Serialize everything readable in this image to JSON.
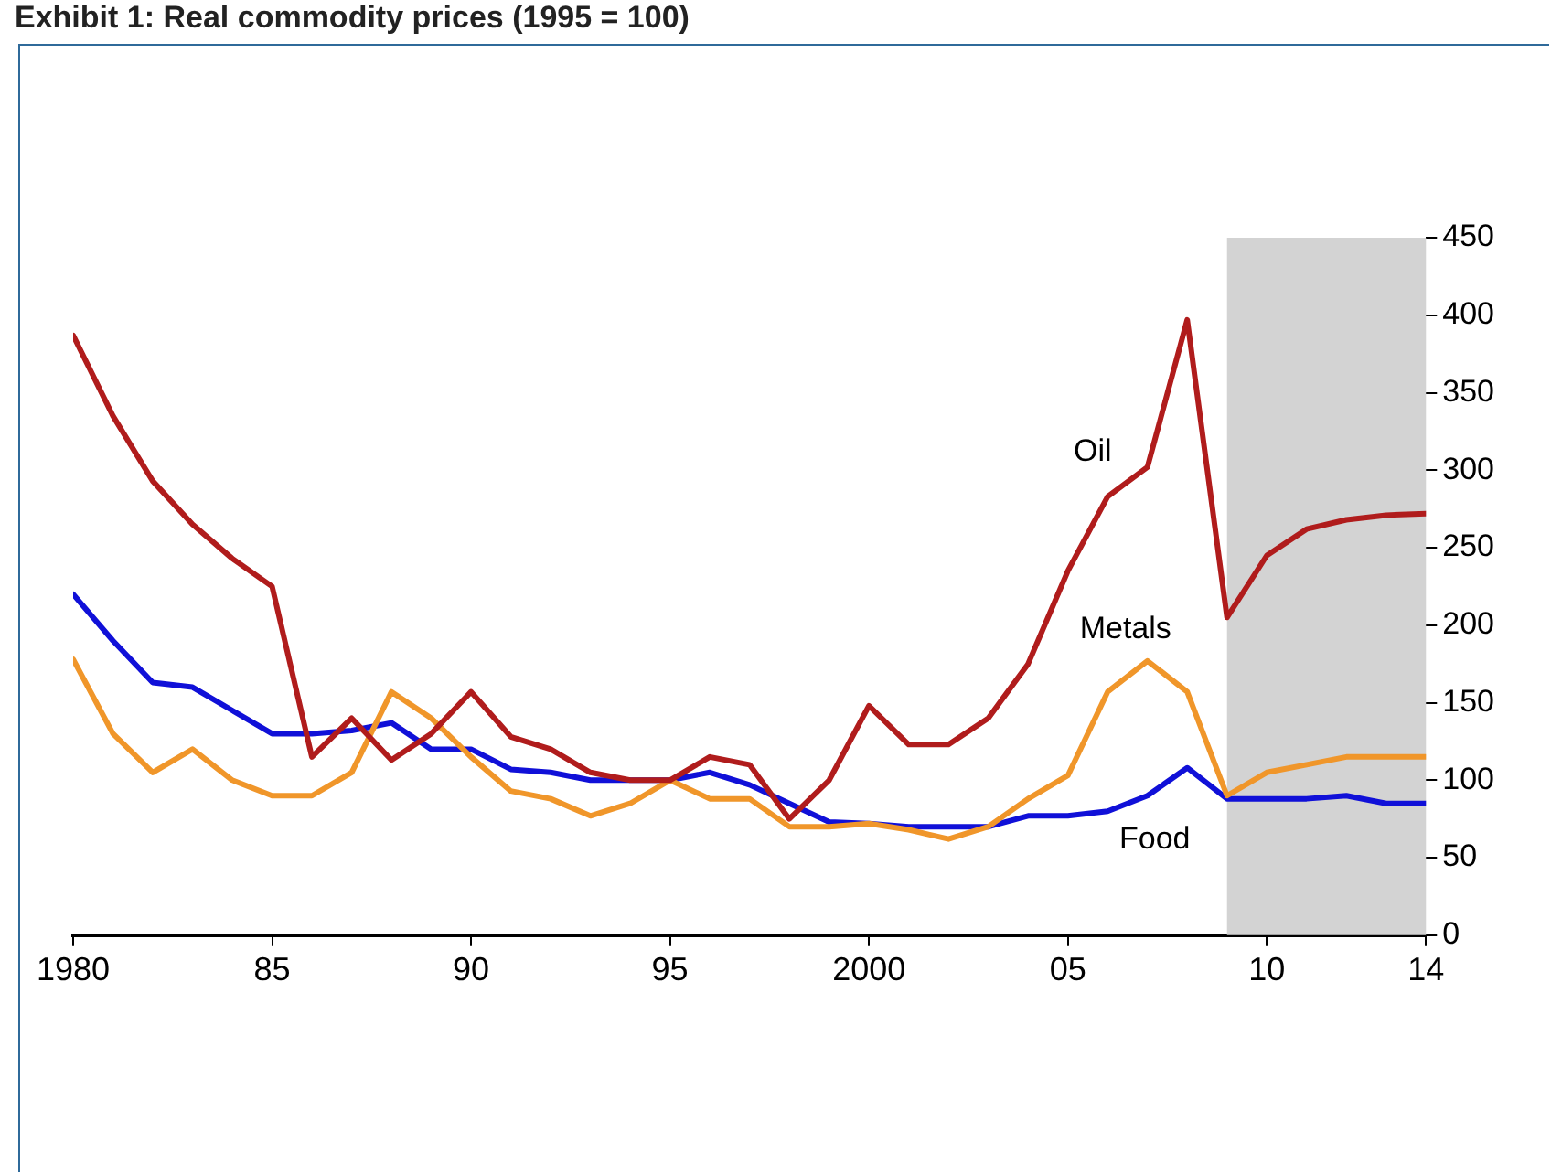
{
  "chart_data": {
    "type": "line",
    "title": "Exhibit 1: Real commodity prices (1995 = 100)",
    "x": [
      1980,
      1981,
      1982,
      1983,
      1984,
      1985,
      1986,
      1987,
      1988,
      1989,
      1990,
      1991,
      1992,
      1993,
      1994,
      1995,
      1996,
      1997,
      1998,
      1999,
      2000,
      2001,
      2002,
      2003,
      2004,
      2005,
      2006,
      2007,
      2008,
      2009,
      2010,
      2011,
      2012,
      2013,
      2014
    ],
    "series": [
      {
        "name": "Oil",
        "color": "#b01c1c",
        "values": [
          387,
          335,
          293,
          265,
          243,
          225,
          115,
          140,
          113,
          130,
          157,
          128,
          120,
          105,
          100,
          100,
          115,
          110,
          75,
          100,
          148,
          123,
          123,
          140,
          175,
          235,
          283,
          302,
          397,
          205,
          245,
          262,
          268,
          271,
          272
        ]
      },
      {
        "name": "Metals",
        "color": "#f0962a",
        "values": [
          178,
          130,
          105,
          120,
          100,
          90,
          90,
          105,
          157,
          140,
          115,
          93,
          88,
          77,
          85,
          100,
          88,
          88,
          70,
          70,
          72,
          68,
          62,
          70,
          88,
          103,
          157,
          177,
          157,
          90,
          105,
          110,
          115,
          115,
          115
        ]
      },
      {
        "name": "Food",
        "color": "#1010d8",
        "values": [
          220,
          190,
          163,
          160,
          145,
          130,
          130,
          132,
          137,
          120,
          120,
          107,
          105,
          100,
          100,
          100,
          105,
          97,
          85,
          73,
          72,
          70,
          70,
          70,
          77,
          77,
          80,
          90,
          108,
          88,
          88,
          88,
          90,
          85,
          85
        ]
      }
    ],
    "xlim": [
      1980,
      2014
    ],
    "xticks": [
      1980,
      {
        "value": 1985,
        "label": "85"
      },
      {
        "value": 1990,
        "label": "90"
      },
      {
        "value": 1995,
        "label": "95"
      },
      2000,
      {
        "value": 2005,
        "label": "05"
      },
      {
        "value": 2010,
        "label": "10"
      },
      {
        "value": 2014,
        "label": "14"
      }
    ],
    "ylim": [
      0,
      450
    ],
    "yticks": [
      0,
      50,
      100,
      150,
      200,
      250,
      300,
      350,
      400,
      450
    ],
    "bands": [
      {
        "axis": "x",
        "from": 2009,
        "to": 2014,
        "color": "#d3d3d3"
      }
    ],
    "grid": false,
    "legend": false,
    "marker": "none",
    "line_style": "solid"
  }
}
